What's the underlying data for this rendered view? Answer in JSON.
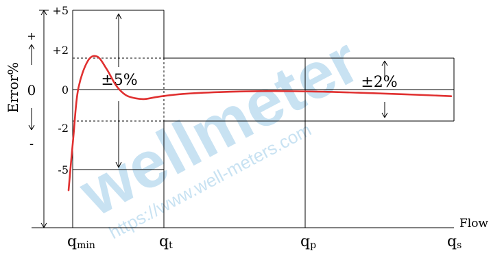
{
  "chart_data": {
    "type": "line",
    "x_axis": {
      "label": "Flow",
      "ticks": [
        {
          "sym": "q",
          "sub": "min"
        },
        {
          "sym": "q",
          "sub": "t"
        },
        {
          "sym": "q",
          "sub": "p"
        },
        {
          "sym": "q",
          "sub": "s"
        }
      ]
    },
    "y_axis": {
      "label": "Error%",
      "ticks": [
        "+5",
        "+2",
        "0",
        "-2",
        "-5"
      ],
      "plus_sign": "+",
      "zero_sign": "0",
      "minus_sign": "-"
    },
    "zones": [
      {
        "from": "qmin",
        "to": "qt",
        "tolerance_pct": 5,
        "label": "±5%"
      },
      {
        "from": "qt",
        "to": "qs",
        "tolerance_pct": 2,
        "label": "±2%"
      }
    ],
    "series": [
      {
        "color": "#e03030",
        "description_points": [
          [
            0.0,
            -6.4
          ],
          [
            0.05,
            -3.0
          ],
          [
            0.1,
            0.0
          ],
          [
            0.2,
            1.8
          ],
          [
            0.3,
            2.1
          ],
          [
            0.4,
            1.3
          ],
          [
            0.5,
            0.25
          ],
          [
            0.6,
            -0.35
          ],
          [
            0.7,
            -0.55
          ],
          [
            0.8,
            -0.6
          ],
          [
            0.95,
            -0.45
          ],
          [
            1.1,
            -0.28
          ],
          [
            1.3,
            -0.16
          ],
          [
            1.55,
            -0.1
          ],
          [
            1.8,
            -0.12
          ],
          [
            2.05,
            -0.2
          ],
          [
            2.3,
            -0.3
          ],
          [
            2.55,
            -0.42
          ]
        ]
      }
    ],
    "grid": false
  },
  "watermark": {
    "brand": "wellmeter",
    "url": "https://www.well-meters.com"
  }
}
